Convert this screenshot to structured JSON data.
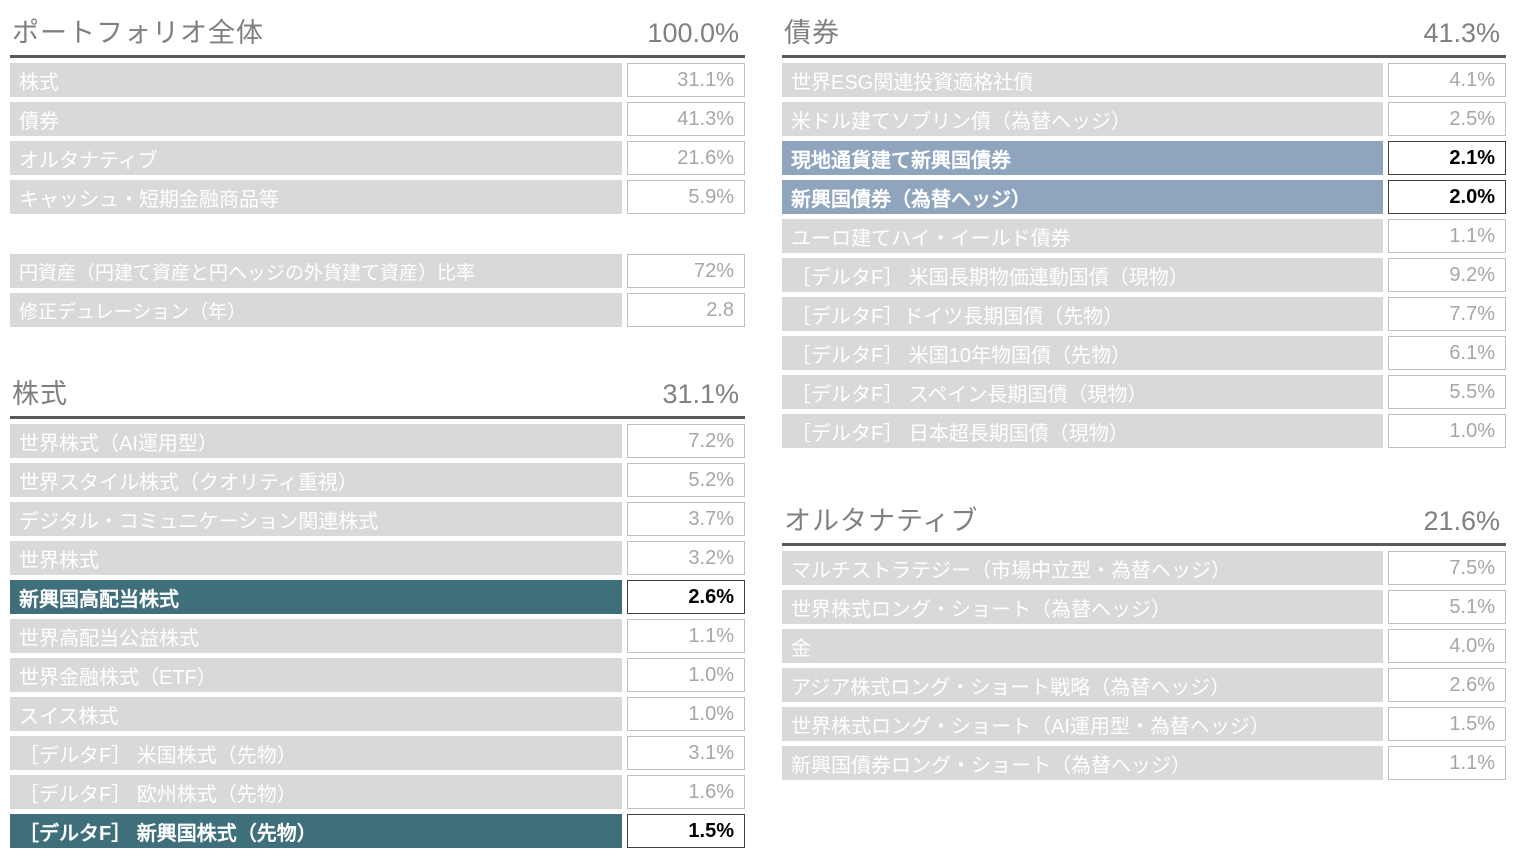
{
  "colors": {
    "row_bg": "#d9d9d9",
    "row_text": "#ffffff",
    "value_text": "#a6a6a6",
    "header_text": "#808080",
    "header_rule": "#595959",
    "equity_highlight": "#3e6f7a",
    "bond_highlight": "#8fa5bd"
  },
  "sections": {
    "portfolio": {
      "title": "ポートフォリオ全体",
      "total": "100.0%",
      "rows": [
        {
          "label": "株式",
          "value": "31.1%",
          "highlight": false
        },
        {
          "label": "債券",
          "value": "41.3%",
          "highlight": false
        },
        {
          "label": "オルタナティブ",
          "value": "21.6%",
          "highlight": false
        },
        {
          "label": "キャッシュ・短期金融商品等",
          "value": "5.9%",
          "highlight": false
        }
      ]
    },
    "metrics": {
      "rows": [
        {
          "label": "円資産（円建て資産と円ヘッジの外貨建て資産）比率",
          "value": "72%",
          "highlight": false
        },
        {
          "label": "修正デュレーション（年）",
          "value": "2.8",
          "highlight": false
        }
      ]
    },
    "equity": {
      "title": "株式",
      "total": "31.1%",
      "rows": [
        {
          "label": "世界株式（AI運用型）",
          "value": "7.2%",
          "highlight": false
        },
        {
          "label": "世界スタイル株式（クオリティ重視）",
          "value": "5.2%",
          "highlight": false
        },
        {
          "label": "デジタル・コミュニケーション関連株式",
          "value": "3.7%",
          "highlight": false
        },
        {
          "label": "世界株式",
          "value": "3.2%",
          "highlight": false
        },
        {
          "label": "新興国高配当株式",
          "value": "2.6%",
          "highlight": true
        },
        {
          "label": "世界高配当公益株式",
          "value": "1.1%",
          "highlight": false
        },
        {
          "label": "世界金融株式（ETF）",
          "value": "1.0%",
          "highlight": false
        },
        {
          "label": "スイス株式",
          "value": "1.0%",
          "highlight": false
        },
        {
          "label": "［デルタF］ 米国株式（先物）",
          "value": "3.1%",
          "highlight": false
        },
        {
          "label": "［デルタF］ 欧州株式（先物）",
          "value": "1.6%",
          "highlight": false
        },
        {
          "label": "［デルタF］ 新興国株式（先物）",
          "value": "1.5%",
          "highlight": true
        }
      ]
    },
    "bonds": {
      "title": "債券",
      "total": "41.3%",
      "rows": [
        {
          "label": "世界ESG関連投資適格社債",
          "value": "4.1%",
          "highlight": false
        },
        {
          "label": "米ドル建てソブリン債（為替ヘッジ）",
          "value": "2.5%",
          "highlight": false
        },
        {
          "label": "現地通貨建て新興国債券",
          "value": "2.1%",
          "highlight": true
        },
        {
          "label": "新興国債券（為替ヘッジ）",
          "value": "2.0%",
          "highlight": true
        },
        {
          "label": "ユーロ建てハイ・イールド債券",
          "value": "1.1%",
          "highlight": false
        },
        {
          "label": "［デルタF］ 米国長期物価連動国債（現物）",
          "value": "9.2%",
          "highlight": false
        },
        {
          "label": "［デルタF］ドイツ長期国債（先物）",
          "value": "7.7%",
          "highlight": false
        },
        {
          "label": "［デルタF］ 米国10年物国債（先物）",
          "value": "6.1%",
          "highlight": false
        },
        {
          "label": "［デルタF］ スペイン長期国債（現物）",
          "value": "5.5%",
          "highlight": false
        },
        {
          "label": "［デルタF］ 日本超長期国債（現物）",
          "value": "1.0%",
          "highlight": false
        }
      ]
    },
    "alternatives": {
      "title": "オルタナティブ",
      "total": "21.6%",
      "rows": [
        {
          "label": "マルチストラテジー（市場中立型・為替ヘッジ）",
          "value": "7.5%",
          "highlight": false
        },
        {
          "label": "世界株式ロング・ショート（為替ヘッジ）",
          "value": "5.1%",
          "highlight": false
        },
        {
          "label": "金",
          "value": "4.0%",
          "highlight": false
        },
        {
          "label": "アジア株式ロング・ショート戦略（為替ヘッジ）",
          "value": "2.6%",
          "highlight": false
        },
        {
          "label": "世界株式ロング・ショート（AI運用型・為替ヘッジ）",
          "value": "1.5%",
          "highlight": false
        },
        {
          "label": "新興国債券ロング・ショート（為替ヘッジ）",
          "value": "1.1%",
          "highlight": false
        }
      ]
    }
  }
}
